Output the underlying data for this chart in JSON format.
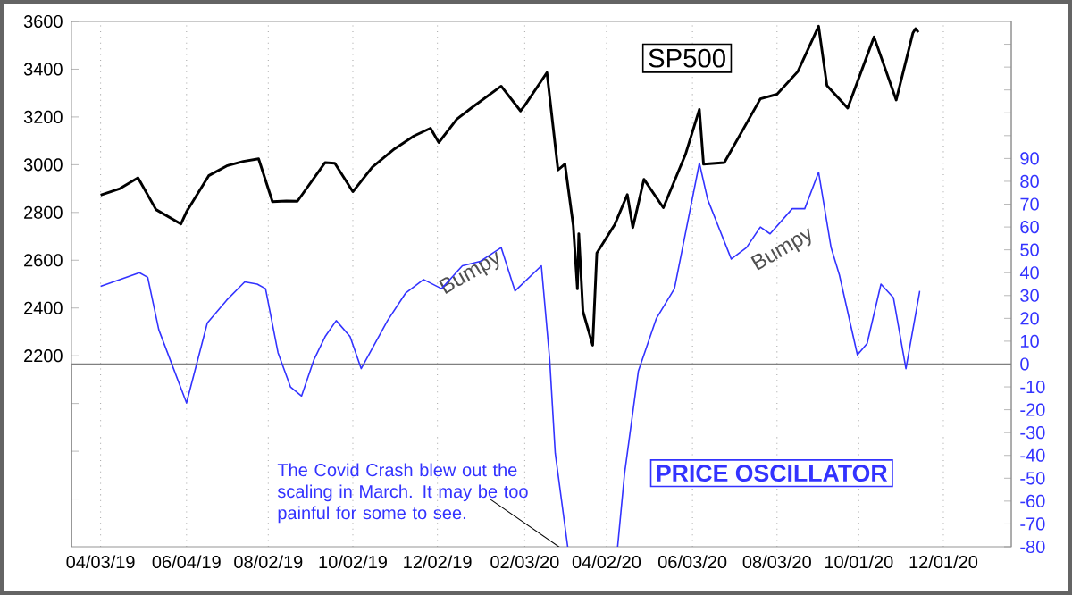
{
  "chart_data": {
    "type": "line",
    "xlim": [
      "2019-03-13",
      "2021-01-19"
    ],
    "xticks": [
      {
        "value": "2019-04-03",
        "label": "04/03/19"
      },
      {
        "value": "2019-06-04",
        "label": "06/04/19"
      },
      {
        "value": "2019-08-02",
        "label": "08/02/19"
      },
      {
        "value": "2019-10-02",
        "label": "10/02/19"
      },
      {
        "value": "2019-12-02",
        "label": "12/02/19"
      },
      {
        "value": "2020-02-03",
        "label": "02/03/20"
      },
      {
        "value": "2020-04-02",
        "label": "04/02/20"
      },
      {
        "value": "2020-06-03",
        "label": "06/03/20"
      },
      {
        "value": "2020-08-03",
        "label": "08/03/20"
      },
      {
        "value": "2020-10-01",
        "label": "10/01/20"
      },
      {
        "value": "2020-12-01",
        "label": "12/01/20"
      }
    ],
    "ylim": [
      1400,
      3600
    ],
    "yticks": [
      {
        "value": 1600,
        "label": null
      },
      {
        "value": 1800,
        "label": null
      },
      {
        "value": 2000,
        "label": null
      },
      2200,
      2400,
      2600,
      2800,
      3000,
      3200,
      3400,
      3600
    ],
    "y2lim": [
      -80,
      150
    ],
    "y2ticks": [
      -80,
      -70,
      -60,
      -50,
      -40,
      -30,
      -20,
      -10,
      0,
      10,
      20,
      30,
      40,
      50,
      60,
      70,
      80,
      90,
      {
        "value": 100,
        "label": null
      },
      {
        "value": 110,
        "label": null
      },
      {
        "value": 120,
        "label": null
      },
      {
        "value": 130,
        "label": null
      },
      {
        "value": 140,
        "label": null
      }
    ],
    "grid": "x",
    "series": [
      {
        "name": "SP500",
        "color": "#000000",
        "x": [
          "2019-04-03",
          "2019-04-17",
          "2019-04-30",
          "2019-05-13",
          "2019-05-31",
          "2019-06-04",
          "2019-06-20",
          "2019-07-03",
          "2019-07-15",
          "2019-07-26",
          "2019-08-05",
          "2019-08-15",
          "2019-08-23",
          "2019-09-12",
          "2019-09-19",
          "2019-10-02",
          "2019-10-16",
          "2019-11-01",
          "2019-11-15",
          "2019-11-27",
          "2019-12-03",
          "2019-12-16",
          "2019-12-27",
          "2020-01-17",
          "2020-01-31",
          "2020-02-03",
          "2020-02-19",
          "2020-02-27",
          "2020-03-03",
          "2020-03-09",
          "2020-03-12",
          "2020-03-13",
          "2020-03-16",
          "2020-03-23",
          "2020-03-26",
          "2020-04-08",
          "2020-04-17",
          "2020-04-21",
          "2020-04-29",
          "2020-05-13",
          "2020-05-29",
          "2020-06-08",
          "2020-06-11",
          "2020-06-26",
          "2020-07-22",
          "2020-08-03",
          "2020-08-18",
          "2020-09-02",
          "2020-09-08",
          "2020-09-23",
          "2020-10-12",
          "2020-10-28",
          "2020-11-09",
          "2020-11-11",
          "2020-11-13"
        ],
        "values": [
          2873,
          2900,
          2945,
          2812,
          2752,
          2803,
          2954,
          2995,
          3014,
          3025,
          2845,
          2848,
          2847,
          3009,
          3006,
          2887,
          2990,
          3066,
          3120,
          3153,
          3093,
          3191,
          3240,
          3329,
          3225,
          3248,
          3386,
          2978,
          3003,
          2746,
          2480,
          2711,
          2386,
          2244,
          2630,
          2750,
          2875,
          2737,
          2939,
          2820,
          3044,
          3232,
          3002,
          3009,
          3276,
          3295,
          3390,
          3580,
          3332,
          3237,
          3535,
          3271,
          3551,
          3570,
          3555
        ]
      },
      {
        "name": "PRICE OSCILLATOR",
        "color": "#3333ff",
        "axis": "y2",
        "x": [
          "2019-04-03",
          "2019-05-01",
          "2019-05-07",
          "2019-05-15",
          "2019-06-04",
          "2019-06-19",
          "2019-07-03",
          "2019-07-16",
          "2019-07-25",
          "2019-07-31",
          "2019-08-09",
          "2019-08-18",
          "2019-08-26",
          "2019-09-04",
          "2019-09-12",
          "2019-09-20",
          "2019-09-30",
          "2019-10-08",
          "2019-10-27",
          "2019-11-09",
          "2019-11-22",
          "2019-12-05",
          "2019-12-20",
          "2020-01-02",
          "2020-01-17",
          "2020-01-27",
          "2020-02-15",
          "2020-02-21",
          "2020-02-25",
          "2020-03-05",
          "2020-03-20",
          "2020-04-10",
          "2020-04-15",
          "2020-04-25",
          "2020-05-08",
          "2020-05-21",
          "2020-06-08",
          "2020-06-14",
          "2020-07-01",
          "2020-07-12",
          "2020-07-22",
          "2020-07-29",
          "2020-08-14",
          "2020-08-23",
          "2020-09-02",
          "2020-09-11",
          "2020-09-17",
          "2020-09-30",
          "2020-10-07",
          "2020-10-17",
          "2020-10-26",
          "2020-11-04",
          "2020-11-14"
        ],
        "values": [
          34,
          40,
          38,
          15,
          -17,
          18,
          28,
          36,
          35,
          33,
          5,
          -10,
          -14,
          2,
          12,
          19,
          12,
          -2,
          19,
          31,
          37,
          33,
          43,
          45,
          51,
          32,
          43,
          2,
          -39,
          -80,
          null,
          -80,
          -48,
          -3,
          20,
          33,
          88,
          72,
          46,
          51,
          60,
          57,
          68,
          68,
          84,
          51,
          39,
          4,
          9,
          35,
          29,
          -2,
          32
        ]
      }
    ],
    "ref_lines": [
      {
        "axis": "y2",
        "value": 0,
        "color": "#808080"
      }
    ],
    "annotations": [
      "Bumpy",
      "Bumpy",
      "The Covid Crash blew out the scaling in March. It may be too painful for some to see."
    ]
  }
}
